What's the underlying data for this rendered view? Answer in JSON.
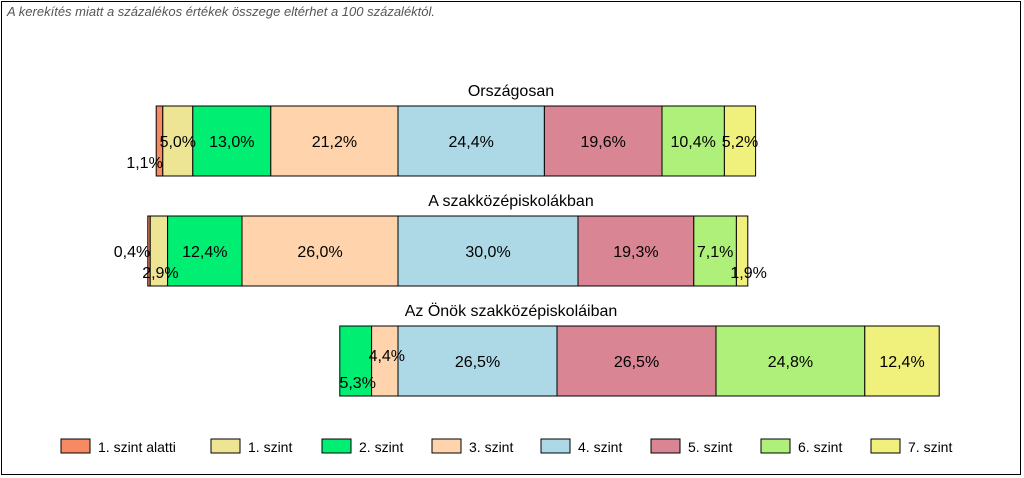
{
  "note": "A kerekítés miatt a  százalékos értékek összege eltérhet a 100 százaléktól.",
  "chart_data": {
    "type": "bar",
    "orientation": "horizontal-stacked",
    "categories": [
      "1. szint alatti",
      "1. szint",
      "2. szint",
      "3. szint",
      "4. szint",
      "5. szint",
      "6. szint",
      "7. szint"
    ],
    "colors": [
      "#F58A63",
      "#EEE594",
      "#00EE72",
      "#FFD4AC",
      "#ADD8E6",
      "#D98594",
      "#AEF07A",
      "#F0F07C"
    ],
    "legend_position": "bottom",
    "bars": [
      {
        "title": "Országosan",
        "values": [
          1.1,
          5.0,
          13.0,
          21.2,
          24.4,
          19.6,
          10.4,
          5.2
        ],
        "labels": [
          "1,1%",
          "5,0%",
          "13,0%",
          "21,2%",
          "24,4%",
          "19,6%",
          "10,4%",
          "5,2%"
        ]
      },
      {
        "title": "A szakközépiskolákban",
        "values": [
          0.4,
          2.9,
          12.4,
          26.0,
          30.0,
          19.3,
          7.1,
          1.9
        ],
        "labels": [
          "0,4%",
          "2,9%",
          "12,4%",
          "26,0%",
          "30,0%",
          "19,3%",
          "7,1%",
          "1,9%"
        ]
      },
      {
        "title": "Az Önök szakközépiskoláiban",
        "values": [
          0.0,
          0.0,
          5.3,
          4.4,
          26.5,
          26.5,
          24.8,
          12.4
        ],
        "labels": [
          "",
          "",
          "5,3%",
          "4,4%",
          "26,5%",
          "26,5%",
          "24,8%",
          "12,4%"
        ]
      }
    ]
  }
}
